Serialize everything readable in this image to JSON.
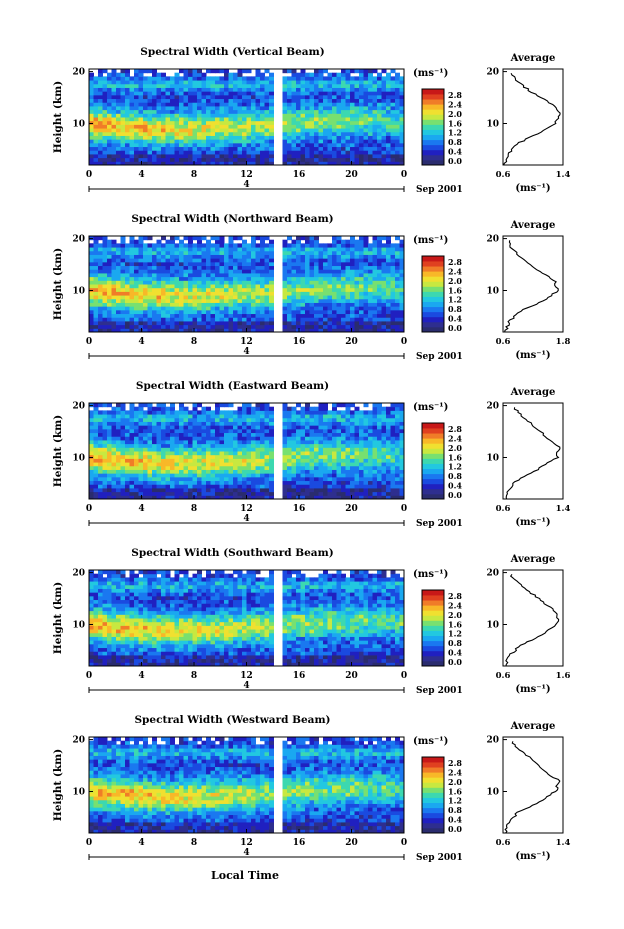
{
  "figure": {
    "x_axis_label": "Local Time",
    "date_label": "Sep 2001",
    "date_tick": "4",
    "y_axis_label": "Height (km)",
    "unit_label": "(ms⁻¹)",
    "avg_title": "Average",
    "avg_unit": "(ms⁻¹)"
  },
  "colorbar": {
    "ticks": [
      "0.0",
      "0.4",
      "0.8",
      "1.2",
      "1.6",
      "2.0",
      "2.4",
      "2.8"
    ],
    "colors": [
      "#2a2c6e",
      "#2e2e8f",
      "#2020c0",
      "#1a4ae0",
      "#1a78f0",
      "#1aa8f0",
      "#22c8e0",
      "#3cd8b0",
      "#78e070",
      "#c8e840",
      "#f0e030",
      "#f8b828",
      "#f07c28",
      "#e04020",
      "#c81818"
    ]
  },
  "panels": [
    {
      "title": "Spectral Width (Vertical Beam)",
      "avg_xticks": [
        "0.6",
        "1.4"
      ]
    },
    {
      "title": "Spectral Width (Northward Beam)",
      "avg_xticks": [
        "0.6",
        "1.8"
      ]
    },
    {
      "title": "Spectral Width (Eastward Beam)",
      "avg_xticks": [
        "0.6",
        "1.4"
      ]
    },
    {
      "title": "Spectral Width (Southward Beam)",
      "avg_xticks": [
        "0.6",
        "1.6"
      ]
    },
    {
      "title": "Spectral Width (Westward Beam)",
      "avg_xticks": [
        "0.6",
        "1.4"
      ]
    }
  ],
  "chart_data": [
    {
      "type": "heatmap",
      "title": "Spectral Width (Vertical Beam)",
      "xlabel": "",
      "ylabel": "Height (km)",
      "x_ticks": [
        "0",
        "4",
        "8",
        "12",
        "16",
        "20",
        "0"
      ],
      "y_ticks": [
        "10",
        "20"
      ],
      "colorbar_range": [
        0.0,
        2.8
      ],
      "average_profile": {
        "xlim": [
          0.6,
          1.4
        ],
        "height_km": [
          2,
          4,
          6,
          8,
          10,
          12,
          14,
          16,
          18,
          20
        ],
        "width": [
          0.62,
          0.66,
          0.78,
          1.05,
          1.3,
          1.38,
          1.22,
          0.98,
          0.8,
          0.68
        ]
      }
    },
    {
      "type": "heatmap",
      "title": "Spectral Width (Northward Beam)",
      "xlabel": "",
      "ylabel": "Height (km)",
      "x_ticks": [
        "0",
        "4",
        "8",
        "12",
        "16",
        "20",
        "0"
      ],
      "y_ticks": [
        "10",
        "20"
      ],
      "colorbar_range": [
        0.0,
        2.8
      ],
      "average_profile": {
        "xlim": [
          0.6,
          1.8
        ],
        "height_km": [
          2,
          4,
          6,
          8,
          10,
          12,
          14,
          16,
          18,
          20
        ],
        "width": [
          0.65,
          0.72,
          0.95,
          1.4,
          1.7,
          1.62,
          1.3,
          1.0,
          0.78,
          0.7
        ]
      }
    },
    {
      "type": "heatmap",
      "title": "Spectral Width (Eastward Beam)",
      "xlabel": "",
      "ylabel": "Height (km)",
      "x_ticks": [
        "0",
        "4",
        "8",
        "12",
        "16",
        "20",
        "0"
      ],
      "y_ticks": [
        "10",
        "20"
      ],
      "colorbar_range": [
        0.0,
        2.8
      ],
      "average_profile": {
        "xlim": [
          0.6,
          1.4
        ],
        "height_km": [
          2,
          4,
          6,
          8,
          10,
          12,
          14,
          16,
          18,
          20
        ],
        "width": [
          0.63,
          0.68,
          0.82,
          1.1,
          1.32,
          1.35,
          1.18,
          1.02,
          0.85,
          0.72
        ]
      }
    },
    {
      "type": "heatmap",
      "title": "Spectral Width (Southward Beam)",
      "xlabel": "",
      "ylabel": "Height (km)",
      "x_ticks": [
        "0",
        "4",
        "8",
        "12",
        "16",
        "20",
        "0"
      ],
      "y_ticks": [
        "10",
        "20"
      ],
      "colorbar_range": [
        0.0,
        2.8
      ],
      "average_profile": {
        "xlim": [
          0.6,
          1.6
        ],
        "height_km": [
          2,
          4,
          6,
          8,
          10,
          12,
          14,
          16,
          18,
          20
        ],
        "width": [
          0.64,
          0.7,
          0.9,
          1.25,
          1.5,
          1.52,
          1.3,
          1.08,
          0.85,
          0.7
        ]
      }
    },
    {
      "type": "heatmap",
      "title": "Spectral Width (Westward Beam)",
      "xlabel": "Local Time",
      "ylabel": "Height (km)",
      "x_ticks": [
        "0",
        "4",
        "8",
        "12",
        "16",
        "20",
        "0"
      ],
      "y_ticks": [
        "10",
        "20"
      ],
      "colorbar_range": [
        0.0,
        2.8
      ],
      "average_profile": {
        "xlim": [
          0.6,
          1.4
        ],
        "height_km": [
          2,
          4,
          6,
          8,
          10,
          12,
          14,
          16,
          18,
          20
        ],
        "width": [
          0.63,
          0.68,
          0.8,
          1.08,
          1.3,
          1.35,
          1.15,
          1.0,
          0.82,
          0.7
        ]
      }
    }
  ]
}
